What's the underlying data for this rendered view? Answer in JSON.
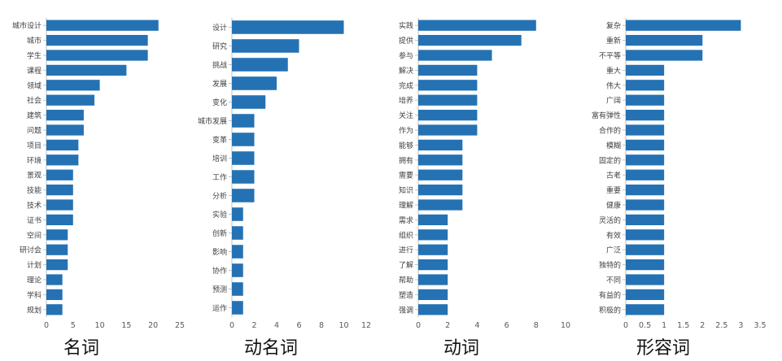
{
  "chart_data": [
    {
      "type": "bar",
      "orientation": "horizontal",
      "title": "名词",
      "categories": [
        "城市设计",
        "城市",
        "学生",
        "课程",
        "领域",
        "社会",
        "建筑",
        "问题",
        "项目",
        "环境",
        "景观",
        "技能",
        "技术",
        "证书",
        "空间",
        "研讨会",
        "计划",
        "理论",
        "学科",
        "规划"
      ],
      "values": [
        21,
        19,
        19,
        15,
        10,
        9,
        7,
        7,
        6,
        6,
        5,
        5,
        5,
        5,
        4,
        4,
        4,
        3,
        3,
        3
      ],
      "xticks": [
        "0",
        "5",
        "10",
        "15",
        "20",
        "25"
      ],
      "xlim": [
        0,
        25
      ],
      "color": "#2472B4"
    },
    {
      "type": "bar",
      "orientation": "horizontal",
      "title": "动名词",
      "categories": [
        "设计",
        "研究",
        "挑战",
        "发展",
        "变化",
        "城市发展",
        "变革",
        "培训",
        "工作",
        "分析",
        "实验",
        "创新",
        "影响",
        "协作",
        "预测",
        "运作"
      ],
      "values": [
        10,
        6,
        5,
        4,
        3,
        2,
        2,
        2,
        2,
        2,
        1,
        1,
        1,
        1,
        1,
        1
      ],
      "xticks": [
        "0",
        "2",
        "4",
        "6",
        "8",
        "10",
        "12"
      ],
      "xlim": [
        0,
        12
      ],
      "color": "#2472B4"
    },
    {
      "type": "bar",
      "orientation": "horizontal",
      "title": "动词",
      "categories": [
        "实践",
        "提供",
        "参与",
        "解决",
        "完成",
        "培养",
        "关注",
        "作为",
        "能够",
        "拥有",
        "需要",
        "知识",
        "理解",
        "需求",
        "组织",
        "进行",
        "了解",
        "帮助",
        "塑造",
        "强调"
      ],
      "values": [
        8,
        7,
        5,
        4,
        4,
        4,
        4,
        4,
        3,
        3,
        3,
        3,
        3,
        2,
        2,
        2,
        2,
        2,
        2,
        2
      ],
      "xticks": [
        "0",
        "2",
        "4",
        "6",
        "8",
        "10"
      ],
      "xlim": [
        0,
        10
      ],
      "color": "#2472B4"
    },
    {
      "type": "bar",
      "orientation": "horizontal",
      "title": "形容词",
      "categories": [
        "复杂",
        "重新",
        "不平等",
        "重大",
        "伟大",
        "广阔",
        "富有弹性",
        "合作的",
        "模糊",
        "固定的",
        "古老",
        "重要",
        "健康",
        "灵活的",
        "有效",
        "广泛",
        "独特的",
        "不同",
        "有益的",
        "积极的"
      ],
      "values": [
        3,
        2,
        2,
        1,
        1,
        1,
        1,
        1,
        1,
        1,
        1,
        1,
        1,
        1,
        1,
        1,
        1,
        1,
        1,
        1
      ],
      "xticks": [
        "0",
        "0.5",
        "1",
        "1.5",
        "2",
        "2.5",
        "3",
        "3.5"
      ],
      "xlim": [
        0,
        3.5
      ],
      "color": "#2472B4"
    }
  ]
}
